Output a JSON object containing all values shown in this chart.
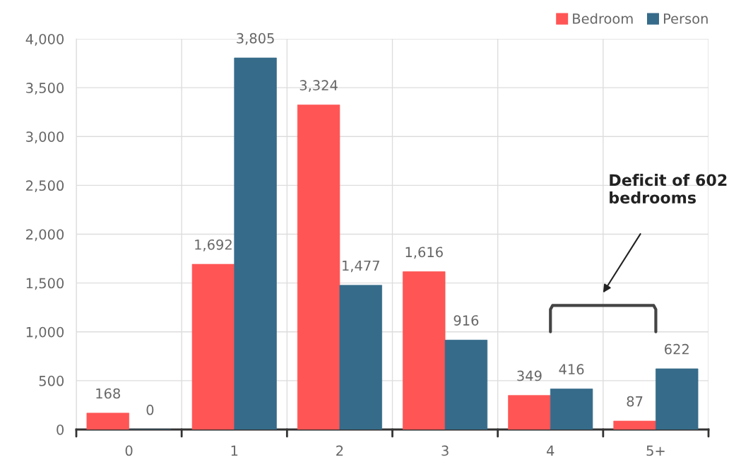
{
  "chart_data": {
    "type": "bar",
    "categories": [
      "0",
      "1",
      "2",
      "3",
      "4",
      "5+"
    ],
    "series": [
      {
        "name": "Bedroom",
        "color": "#ff5555",
        "values": [
          168,
          1692,
          3324,
          1616,
          349,
          87
        ]
      },
      {
        "name": "Person",
        "color": "#366b8a",
        "values": [
          0,
          3805,
          1477,
          916,
          416,
          622
        ]
      }
    ],
    "ylim": [
      0,
      4000
    ],
    "yticks": [
      {
        "value": 0,
        "label": "0"
      },
      {
        "value": 500,
        "label": "500"
      },
      {
        "value": 1000,
        "label": "1,000"
      },
      {
        "value": 1500,
        "label": "1,500"
      },
      {
        "value": 2000,
        "label": "2,000"
      },
      {
        "value": 2500,
        "label": "2,500"
      },
      {
        "value": 3000,
        "label": "3,000"
      },
      {
        "value": 3500,
        "label": "3,500"
      },
      {
        "value": 4000,
        "label": "4,000"
      }
    ],
    "value_labels": [
      [
        "168",
        "1,692",
        "3,324",
        "1,616",
        "349",
        "87"
      ],
      [
        "0",
        "3,805",
        "1,477",
        "916",
        "416",
        "622"
      ]
    ],
    "annotations": [
      "Deficit of 602\nbedrooms"
    ],
    "grid": true,
    "legend": "top right"
  }
}
